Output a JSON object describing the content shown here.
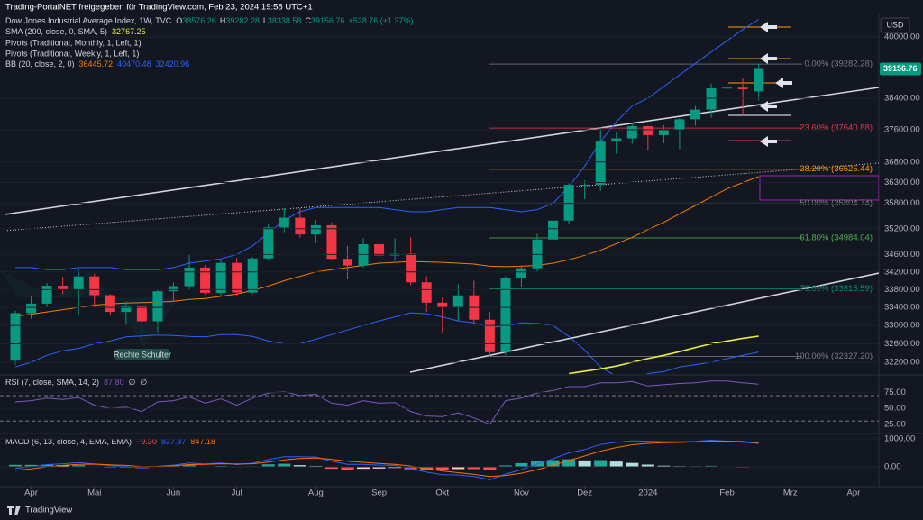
{
  "header": {
    "share": "Trading-PortalNET freigegeben für TradingView.com, Feb 23, 2024 19:58 UTC+1",
    "currency": "USD"
  },
  "chart_data": {
    "type": "candlestick",
    "title": "Dow Jones Industrial Average Index, 1W, TVC",
    "ohlc_labels": [
      "O",
      "H",
      "L",
      "C"
    ],
    "change": "+528.76 (+1.37%)",
    "up_color": "#089981",
    "down_color": "#f23645",
    "log": true,
    "ylim": [
      31950,
      40630
    ],
    "yticks": [
      {
        "value": 40000,
        "label": "40000.00"
      },
      {
        "value": 38400,
        "label": "38400.00"
      },
      {
        "value": 37600,
        "label": "37600.00"
      },
      {
        "value": 36800,
        "label": "36800.00"
      },
      {
        "value": 36300,
        "label": "36300.00"
      },
      {
        "value": 35800,
        "label": "35800.00"
      },
      {
        "value": 35200,
        "label": "35200.00"
      },
      {
        "value": 34600,
        "label": "34600.00"
      },
      {
        "value": 34200,
        "label": "34200.00"
      },
      {
        "value": 33800,
        "label": "33800.00"
      },
      {
        "value": 33400,
        "label": "33400.00"
      },
      {
        "value": 33000,
        "label": "33000.00"
      },
      {
        "value": 32600,
        "label": "32600.00"
      },
      {
        "value": 32200,
        "label": "32200.00"
      }
    ],
    "xlim": [
      -0.97,
      54.6
    ],
    "xticks": [
      {
        "value": 1,
        "label": "Apr"
      },
      {
        "value": 5,
        "label": "Mai"
      },
      {
        "value": 10,
        "label": "Jun"
      },
      {
        "value": 14,
        "label": "Jul"
      },
      {
        "value": 19,
        "label": "Aug"
      },
      {
        "value": 23,
        "label": "Sep"
      },
      {
        "value": 27,
        "label": "Okt"
      },
      {
        "value": 32,
        "label": "Nov"
      },
      {
        "value": 36,
        "label": "Dez"
      },
      {
        "value": 40,
        "label": "2024"
      },
      {
        "value": 45,
        "label": "Feb"
      },
      {
        "value": 49,
        "label": "Mrz"
      },
      {
        "value": 53,
        "label": "Apr"
      }
    ],
    "open": [
      32237,
      33274,
      33485,
      33886,
      33809,
      34098,
      33674,
      33301,
      33427,
      33093,
      33762,
      33876,
      34299,
      33727,
      34407,
      33734,
      34509,
      35228,
      35459,
      35066,
      35281,
      34500,
      34346,
      34837,
      34576,
      34618,
      33964,
      33507,
      33407,
      33670,
      33127,
      32418,
      34061,
      34283,
      34947,
      35390,
      36245,
      36247,
      37305,
      37385,
      37690,
      37466,
      37593,
      37864,
      38109,
      38654,
      38671,
      38576.26
    ],
    "high": [
      33330,
      33640,
      33950,
      34090,
      34260,
      34160,
      33700,
      33530,
      33450,
      33800,
      33960,
      34590,
      34350,
      34470,
      34520,
      34540,
      35300,
      35680,
      35680,
      35400,
      35350,
      34800,
      34980,
      34890,
      34980,
      35000,
      34100,
      33620,
      33920,
      34000,
      33300,
      34100,
      34350,
      35080,
      35420,
      36280,
      36350,
      37660,
      37530,
      37780,
      37700,
      37720,
      37890,
      38200,
      38780,
      38800,
      38930,
      39282.28
    ],
    "low": [
      32150,
      33150,
      33400,
      33700,
      33230,
      33400,
      33230,
      33010,
      32580,
      32850,
      33550,
      33800,
      33690,
      33640,
      33650,
      33700,
      34460,
      35120,
      34990,
      34860,
      34480,
      34030,
      34300,
      34380,
      34450,
      33900,
      33300,
      32850,
      33100,
      33050,
      32330,
      32350,
      33860,
      34200,
      34900,
      35300,
      35900,
      36100,
      37000,
      37250,
      37100,
      37260,
      37120,
      37700,
      37900,
      38480,
      37960,
      38338.58
    ],
    "close": [
      33274,
      33485,
      33886,
      33809,
      34098,
      33674,
      33301,
      33427,
      33093,
      33762,
      33876,
      34299,
      33727,
      34407,
      33734,
      34509,
      35228,
      35459,
      35066,
      35281,
      34500,
      34346,
      34837,
      34576,
      34618,
      33964,
      33507,
      33407,
      33670,
      33127,
      32418,
      34061,
      34283,
      34947,
      35390,
      36245,
      36247,
      37305,
      37385,
      37690,
      37466,
      37593,
      37864,
      38109,
      38654,
      38671,
      38628,
      39156.76
    ],
    "sma": {
      "name": "SMA (200, close, 0, SMA, 5)",
      "color": "#e8f03c",
      "values": [
        null,
        null,
        null,
        null,
        null,
        null,
        null,
        null,
        null,
        null,
        null,
        null,
        null,
        null,
        null,
        null,
        null,
        null,
        null,
        null,
        null,
        null,
        null,
        null,
        null,
        null,
        null,
        null,
        null,
        null,
        null,
        null,
        null,
        null,
        null,
        31960,
        32010,
        32060,
        32120,
        32200,
        32280,
        32350,
        32430,
        32520,
        32600,
        32660,
        32720,
        32767.25
      ]
    },
    "pivots": [
      "Pivots (Traditional, Monthly, 1, Left, 1)",
      "Pivots (Traditional, Weekly, 1, Left, 1)"
    ],
    "bb": {
      "name": "BB (20, close, 2, 0)",
      "basis": {
        "color": "#f57c00",
        "values": [
          33200,
          33250,
          33300,
          33350,
          33400,
          33450,
          33480,
          33500,
          33510,
          33520,
          33540,
          33580,
          33600,
          33650,
          33700,
          33780,
          33880,
          34000,
          34100,
          34200,
          34250,
          34300,
          34350,
          34400,
          34420,
          34440,
          34430,
          34420,
          34400,
          34380,
          34330,
          34320,
          34330,
          34350,
          34400,
          34480,
          34580,
          34700,
          34850,
          35000,
          35180,
          35350,
          35550,
          35750,
          35950,
          36150,
          36300,
          36445.72
        ]
      },
      "upper": {
        "color": "#2962ff",
        "values": [
          34300,
          34300,
          34250,
          34250,
          34300,
          34300,
          34300,
          34250,
          34250,
          34250,
          34300,
          34400,
          34450,
          34500,
          34600,
          34800,
          35100,
          35400,
          35600,
          35700,
          35700,
          35700,
          35700,
          35700,
          35650,
          35600,
          35600,
          35650,
          35700,
          35700,
          35700,
          35650,
          35600,
          35650,
          35800,
          36200,
          36700,
          37300,
          37800,
          38200,
          38400,
          38700,
          39000,
          39300,
          39600,
          39900,
          40200,
          40470.48
        ]
      },
      "lower": {
        "color": "#2962ff",
        "values": [
          32100,
          32200,
          32350,
          32450,
          32500,
          32600,
          32660,
          32750,
          32770,
          32790,
          32780,
          32760,
          32750,
          32800,
          32800,
          32760,
          32660,
          32600,
          32600,
          32700,
          32800,
          32900,
          33000,
          33100,
          33190,
          33280,
          33260,
          33190,
          33100,
          33060,
          32960,
          32990,
          33060,
          33050,
          33000,
          32760,
          32460,
          32100,
          31900,
          31800,
          31960,
          32000,
          32100,
          32150,
          32200,
          32280,
          32350,
          32420.96
        ]
      }
    },
    "fib": [
      {
        "label": "0.00% (39282.28)",
        "value": 39282.28,
        "color": "#787b86"
      },
      {
        "label": "23.60% (37640.88)",
        "value": 37640.88,
        "color": "#f23645"
      },
      {
        "label": "38.20% (36625.44)",
        "value": 36625.44,
        "color": "#ff9800"
      },
      {
        "label": "50.00% (35804.74)",
        "value": 35804.74,
        "color": "#7e8c7e"
      },
      {
        "label": "61.80% (34984.04)",
        "value": 34984.04,
        "color": "#4caf50"
      },
      {
        "label": "78.60% (33815.59)",
        "value": 33815.59,
        "color": "#089981"
      },
      {
        "label": "100.00% (32327.20)",
        "value": 32327.2,
        "color": "#787b86"
      }
    ],
    "annotation": "Rechte Schulter"
  },
  "rsi": {
    "title": "RSI (7, close, SMA, 14, 2)",
    "legend_value": "87.80",
    "extra": [
      "∅",
      "∅"
    ],
    "color": "#7e57c2",
    "ylim": [
      12,
      101
    ],
    "yticks": [
      {
        "value": 75,
        "label": "75.00"
      },
      {
        "value": 50,
        "label": "50.00"
      },
      {
        "value": 25,
        "label": "25.00"
      }
    ],
    "bands": [
      70,
      30
    ],
    "values": [
      60,
      62,
      66,
      64,
      67,
      55,
      50,
      52,
      45,
      60,
      62,
      68,
      58,
      65,
      55,
      66,
      74,
      76,
      70,
      72,
      58,
      55,
      62,
      58,
      59,
      45,
      38,
      37,
      43,
      35,
      25,
      62,
      66,
      74,
      78,
      84,
      84,
      90,
      90,
      92,
      85,
      87,
      89,
      90,
      93,
      93,
      90,
      87.8
    ]
  },
  "macd": {
    "title": "MACD (6, 13, close, 4, EMA, EMA)",
    "ylim": [
      -710,
      1161
    ],
    "yticks": [
      {
        "value": 1000,
        "label": "1000.00"
      },
      {
        "value": 0,
        "label": "0.00"
      }
    ],
    "histogram": {
      "legend_value": "−9.30",
      "values": [
        70,
        70,
        80,
        60,
        60,
        5,
        -30,
        -30,
        -50,
        5,
        25,
        60,
        10,
        30,
        -20,
        20,
        90,
        110,
        60,
        30,
        -70,
        -110,
        -70,
        -60,
        -40,
        -90,
        -130,
        -130,
        -80,
        -80,
        -110,
        50,
        130,
        200,
        240,
        270,
        230,
        240,
        190,
        140,
        80,
        40,
        25,
        20,
        35,
        2,
        -25,
        -9.3
      ]
    },
    "macd": {
      "color": "#2962ff",
      "values": [
        -50,
        0,
        80,
        110,
        150,
        100,
        40,
        20,
        -40,
        20,
        60,
        140,
        100,
        140,
        80,
        130,
        260,
        360,
        360,
        350,
        200,
        90,
        90,
        60,
        50,
        -60,
        -190,
        -280,
        -290,
        -350,
        -460,
        -260,
        -100,
        100,
        290,
        500,
        620,
        800,
        880,
        930,
        920,
        900,
        900,
        910,
        950,
        920,
        880,
        837.87
      ]
    },
    "signal": {
      "color": "#ff6d00",
      "values": [
        -120,
        -70,
        0,
        50,
        90,
        95,
        70,
        50,
        10,
        15,
        35,
        80,
        90,
        110,
        100,
        110,
        170,
        250,
        300,
        320,
        270,
        200,
        160,
        120,
        90,
        30,
        -60,
        -150,
        -210,
        -270,
        -350,
        -310,
        -230,
        -100,
        50,
        230,
        390,
        560,
        690,
        790,
        840,
        860,
        875,
        890,
        915,
        918,
        905,
        847.18
      ]
    }
  },
  "footer": {
    "brand": "TradingView"
  }
}
